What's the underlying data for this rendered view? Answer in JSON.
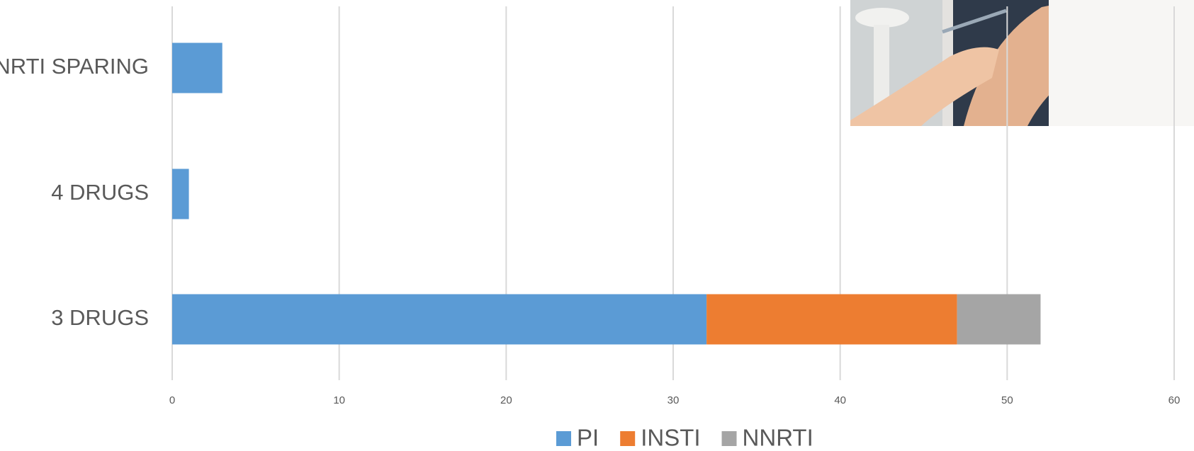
{
  "chart_data": {
    "type": "stacked-bar-horizontal",
    "categories": [
      "NRTI SPARING",
      "4 DRUGS",
      "3 DRUGS"
    ],
    "series": [
      {
        "name": "PI",
        "color": "#5b9bd5",
        "values": [
          3,
          1,
          32
        ]
      },
      {
        "name": "INSTI",
        "color": "#ed7d31",
        "values": [
          0,
          0,
          15
        ]
      },
      {
        "name": "NNRTI",
        "color": "#a5a5a5",
        "values": [
          0,
          0,
          5
        ]
      }
    ],
    "xlim": [
      0,
      60
    ],
    "xticks": [
      0,
      10,
      20,
      30,
      40,
      50,
      60
    ],
    "grid": true,
    "legend": "bottom"
  }
}
